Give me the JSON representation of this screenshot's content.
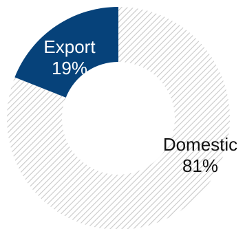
{
  "chart_data": {
    "type": "pie",
    "variant": "donut",
    "slices": [
      {
        "label": "Export",
        "percent_label": "19%",
        "value": 19,
        "color": "#06427a",
        "fill": "solid",
        "text_color": "#ffffff"
      },
      {
        "label": "Domestic",
        "percent_label": "81%",
        "value": 81,
        "color": "#cfcfcf",
        "fill": "hatched",
        "text_color": "#111111"
      }
    ],
    "start": "12 o'clock",
    "direction": "counter-clockwise for first slice"
  }
}
